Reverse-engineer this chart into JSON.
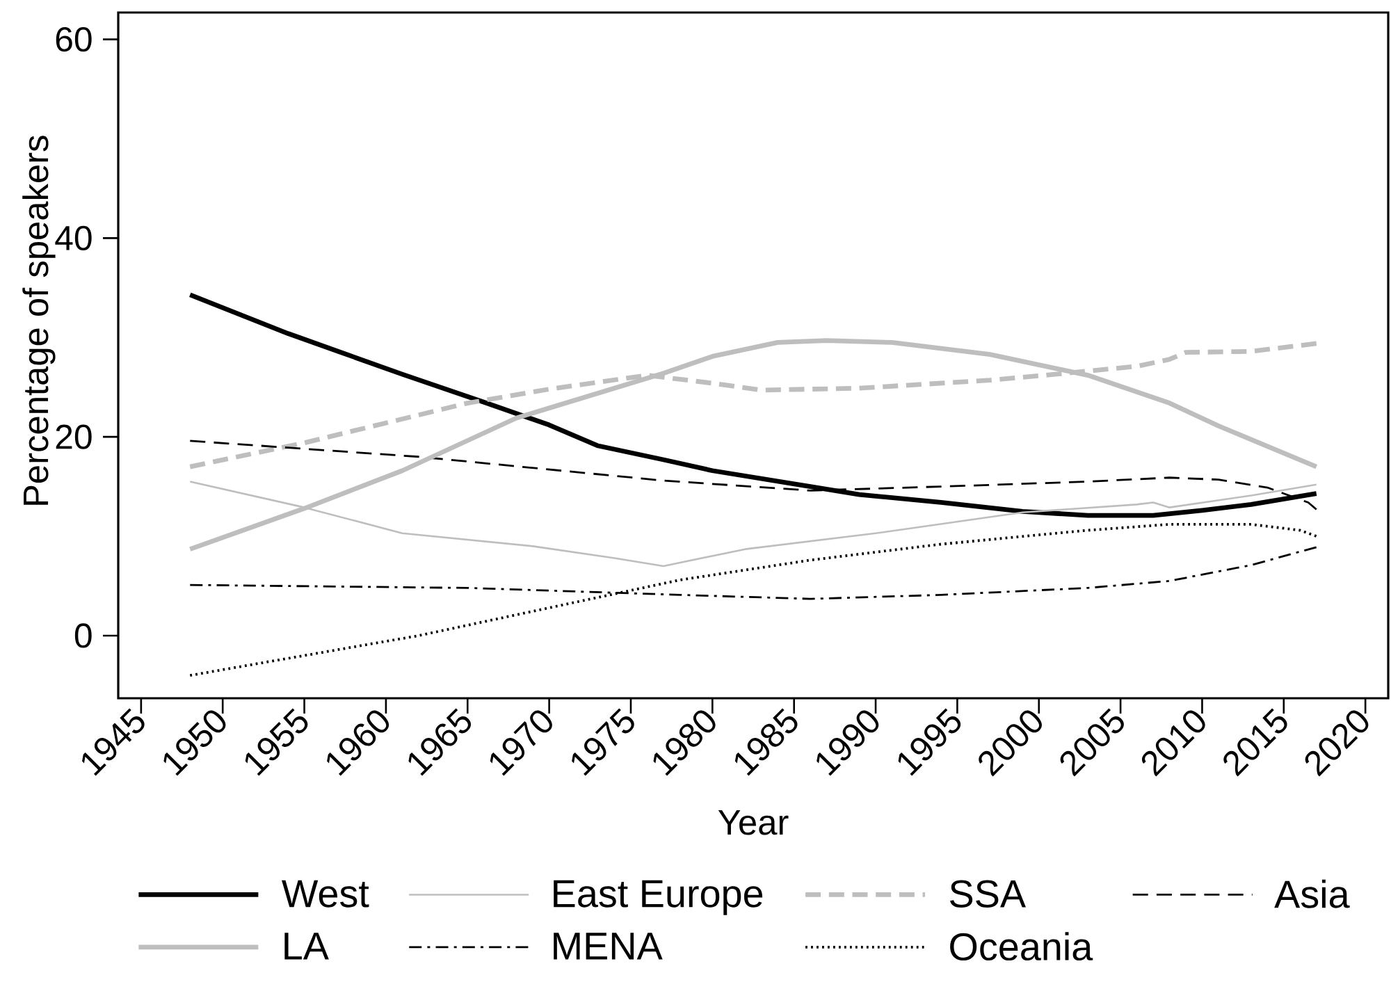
{
  "chart_data": {
    "type": "line",
    "xlabel": "Year",
    "ylabel": "Percentage of speakers",
    "xlim": [
      1943.6,
      2021.4
    ],
    "ylim": [
      -6.3,
      62.7
    ],
    "xticks": [
      1945,
      1950,
      1955,
      1960,
      1965,
      1970,
      1975,
      1980,
      1985,
      1990,
      1995,
      2000,
      2005,
      2010,
      2015,
      2020
    ],
    "yticks": [
      0,
      20,
      40,
      60
    ],
    "legend": "bottom",
    "marker": "none",
    "series": [
      {
        "name": "West",
        "color": "#000000",
        "line_style": "solid",
        "x": [
          1948,
          1954,
          1961,
          1966,
          1970,
          1973,
          1977,
          1980,
          1986,
          1989,
          1994,
          1999,
          2003,
          2007,
          2010,
          2013,
          2017
        ],
        "values": [
          34.3,
          30.4,
          26.3,
          23.5,
          21.2,
          19.1,
          17.7,
          16.6,
          15.0,
          14.2,
          13.4,
          12.5,
          12.1,
          12.1,
          12.6,
          13.2,
          14.3
        ]
      },
      {
        "name": "East Europe",
        "color": "#bebebe",
        "line_style": "solid",
        "x": [
          1948,
          1955,
          1961,
          1969,
          1974,
          1977,
          1982,
          1990,
          1999,
          2006,
          2007,
          2008,
          2013,
          2017
        ],
        "values": [
          15.5,
          12.9,
          10.3,
          9.0,
          7.8,
          7.0,
          8.7,
          10.3,
          12.4,
          13.2,
          13.4,
          12.9,
          14.1,
          15.2
        ]
      },
      {
        "name": "SSA",
        "color": "#bebebe",
        "line_style": "dashed",
        "x": [
          1948,
          1955,
          1965,
          1970,
          1976,
          1980,
          1983,
          1989,
          1997,
          2001,
          2006,
          2008,
          2009,
          2013,
          2017
        ],
        "values": [
          17.0,
          19.4,
          23.4,
          24.8,
          26.2,
          25.4,
          24.7,
          24.9,
          25.7,
          26.3,
          27.1,
          27.8,
          28.5,
          28.6,
          29.4
        ]
      },
      {
        "name": "Asia",
        "color": "#000000",
        "line_style": "dashed",
        "x": [
          1948,
          1962,
          1977,
          1986,
          1994,
          2003,
          2008,
          2011,
          2014,
          2016.5,
          2017
        ],
        "values": [
          19.6,
          18.0,
          15.6,
          14.6,
          15.0,
          15.5,
          15.9,
          15.7,
          14.9,
          13.4,
          12.7
        ]
      },
      {
        "name": "LA",
        "color": "#bebebe",
        "line_style": "solid",
        "x": [
          1948,
          1955,
          1961,
          1968,
          1977,
          1980,
          1984,
          1987,
          1991,
          1997,
          2003,
          2008,
          2011,
          2017
        ],
        "values": [
          8.7,
          12.8,
          16.6,
          21.9,
          26.4,
          28.1,
          29.5,
          29.7,
          29.5,
          28.3,
          26.2,
          23.4,
          21.1,
          17.0
        ]
      },
      {
        "name": "MENA",
        "color": "#000000",
        "line_style": "dashdot",
        "x": [
          1948,
          1965,
          1978,
          1986,
          1994,
          2003,
          2008,
          2013,
          2017
        ],
        "values": [
          5.1,
          4.8,
          4.1,
          3.7,
          4.1,
          4.8,
          5.5,
          7.1,
          8.9
        ]
      },
      {
        "name": "Oceania",
        "color": "#000000",
        "line_style": "dotted",
        "x": [
          1948,
          1962,
          1970,
          1978,
          1986,
          1994,
          2003,
          2008,
          2013,
          2016,
          2017
        ],
        "values": [
          -4.0,
          0.0,
          2.8,
          5.6,
          7.6,
          9.2,
          10.6,
          11.2,
          11.2,
          10.6,
          10.0
        ]
      }
    ]
  }
}
